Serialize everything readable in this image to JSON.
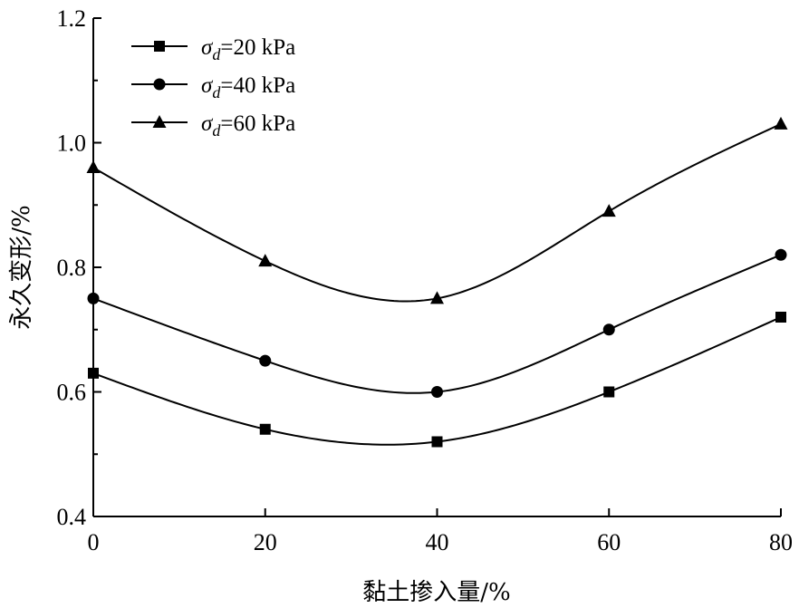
{
  "chart_data": {
    "type": "line",
    "title": "",
    "xlabel": "黏土掺入量/%",
    "ylabel": "永久变形/%",
    "x": [
      0,
      20,
      40,
      60,
      80
    ],
    "xlim": [
      0,
      80
    ],
    "ylim": [
      0.4,
      1.2
    ],
    "xticks": [
      "0",
      "20",
      "40",
      "60",
      "80"
    ],
    "yticks": [
      "0.4",
      "0.6",
      "0.8",
      "1.0",
      "1.2"
    ],
    "grid": false,
    "legend_position": "top-left",
    "smooth": true,
    "series": [
      {
        "name": "σd=20 kPa",
        "name_symbol": "σ",
        "name_sub": "d",
        "name_rest": "=20 kPa",
        "marker": "square",
        "color": "#000000",
        "values": [
          0.63,
          0.54,
          0.52,
          0.6,
          0.72
        ]
      },
      {
        "name": "σd=40 kPa",
        "name_symbol": "σ",
        "name_sub": "d",
        "name_rest": "=40 kPa",
        "marker": "circle",
        "color": "#000000",
        "values": [
          0.75,
          0.65,
          0.6,
          0.7,
          0.82
        ]
      },
      {
        "name": "σd=60 kPa",
        "name_symbol": "σ",
        "name_sub": "d",
        "name_rest": "=60 kPa",
        "marker": "triangle",
        "color": "#000000",
        "values": [
          0.96,
          0.81,
          0.75,
          0.89,
          1.03
        ]
      }
    ]
  }
}
